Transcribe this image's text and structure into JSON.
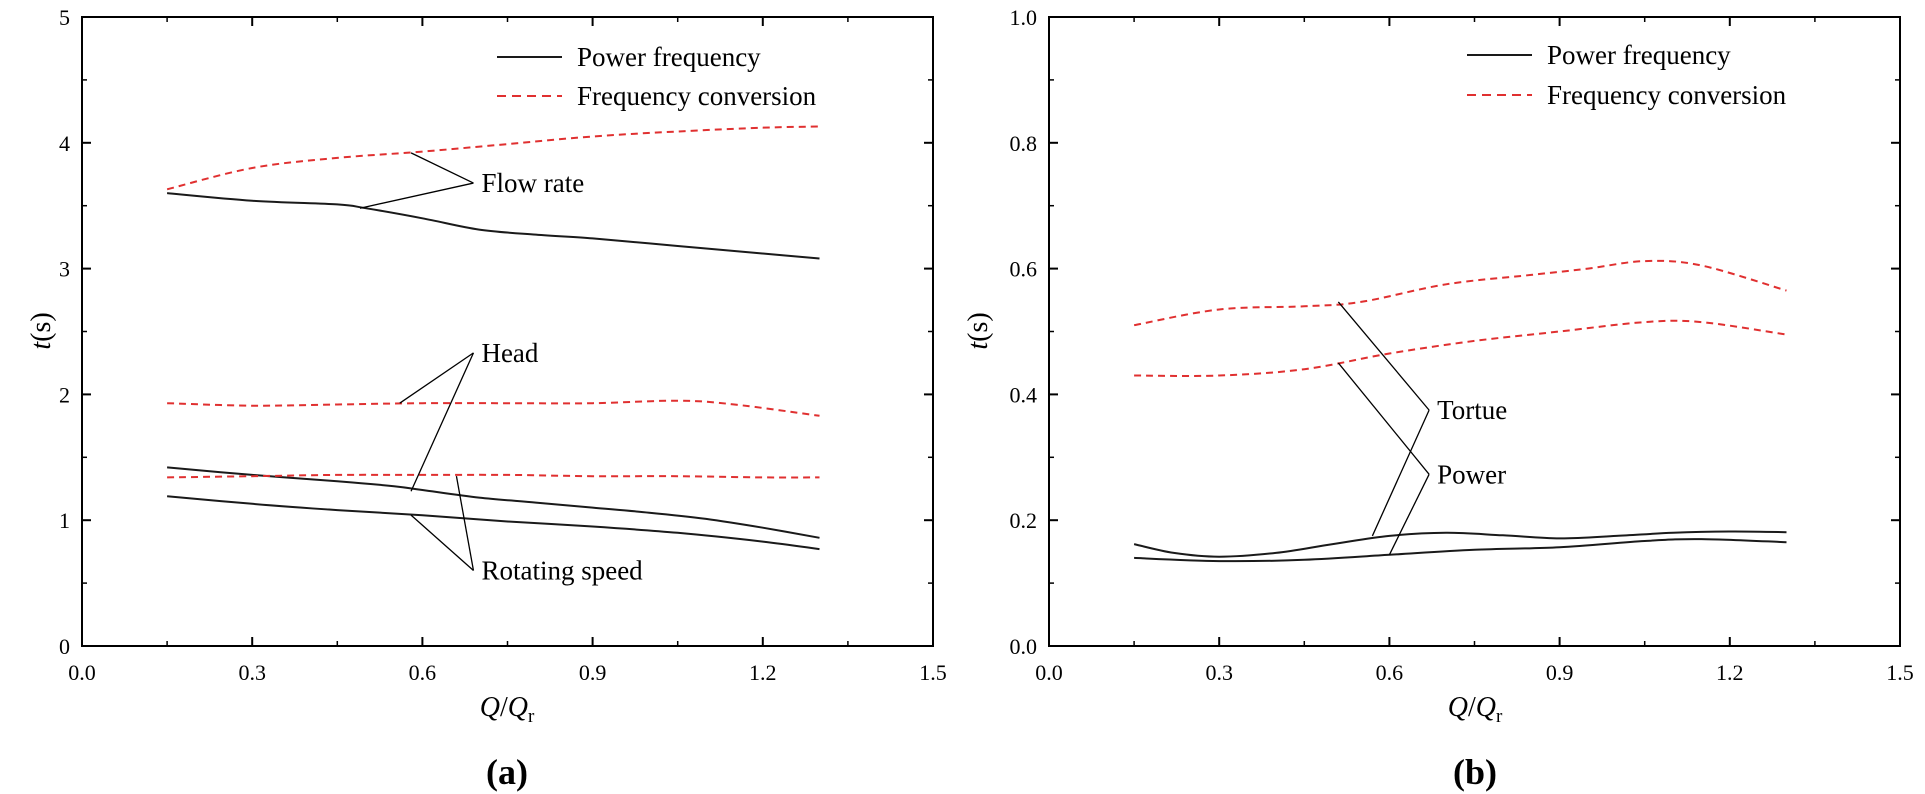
{
  "chart_data": [
    {
      "type": "line",
      "panel_label": "(a)",
      "xlabel": "Q/Qr",
      "ylabel": "t(s)",
      "xlim": [
        0,
        1.5
      ],
      "ylim": [
        0,
        5
      ],
      "xticks": [
        0.0,
        0.3,
        0.6,
        0.9,
        1.2,
        1.5
      ],
      "xtick_labels": [
        "0.0",
        "0.3",
        "0.6",
        "0.9",
        "1.2",
        "1.5"
      ],
      "yticks": [
        0,
        1,
        2,
        3,
        4,
        5
      ],
      "ytick_labels": [
        "0",
        "1",
        "2",
        "3",
        "4",
        "5"
      ],
      "legend": {
        "placement": "top-right",
        "entries": [
          {
            "label": "Power frequency",
            "style": "solid",
            "color": "#1a1a1a"
          },
          {
            "label": "Frequency conversion",
            "style": "dashed",
            "color": "#e03030"
          }
        ]
      },
      "series": [
        {
          "name": "Flow rate - Power frequency",
          "style": "solid",
          "color": "#1a1a1a",
          "x": [
            0.15,
            0.3,
            0.45,
            0.5,
            0.6,
            0.7,
            0.8,
            0.9,
            1.0,
            1.1,
            1.2,
            1.3
          ],
          "y": [
            3.6,
            3.54,
            3.51,
            3.48,
            3.4,
            3.31,
            3.27,
            3.24,
            3.2,
            3.16,
            3.12,
            3.08
          ]
        },
        {
          "name": "Flow rate - Frequency conversion",
          "style": "dashed",
          "color": "#e03030",
          "x": [
            0.15,
            0.3,
            0.45,
            0.6,
            0.75,
            0.9,
            1.05,
            1.2,
            1.3
          ],
          "y": [
            3.63,
            3.8,
            3.88,
            3.93,
            3.99,
            4.05,
            4.09,
            4.12,
            4.13
          ]
        },
        {
          "name": "Head - Power frequency",
          "style": "solid",
          "color": "#1a1a1a",
          "x": [
            0.15,
            0.3,
            0.45,
            0.55,
            0.6,
            0.7,
            0.8,
            0.9,
            1.0,
            1.1,
            1.2,
            1.3
          ],
          "y": [
            1.42,
            1.36,
            1.31,
            1.27,
            1.24,
            1.18,
            1.14,
            1.1,
            1.06,
            1.01,
            0.94,
            0.86
          ]
        },
        {
          "name": "Head - Frequency conversion",
          "style": "dashed",
          "color": "#e03030",
          "x": [
            0.15,
            0.3,
            0.45,
            0.6,
            0.75,
            0.9,
            1.05,
            1.15,
            1.3
          ],
          "y": [
            1.93,
            1.91,
            1.92,
            1.93,
            1.93,
            1.93,
            1.95,
            1.92,
            1.83
          ]
        },
        {
          "name": "Rotating speed - Power frequency",
          "style": "solid",
          "color": "#1a1a1a",
          "x": [
            0.15,
            0.3,
            0.45,
            0.6,
            0.75,
            0.9,
            1.05,
            1.2,
            1.3
          ],
          "y": [
            1.19,
            1.13,
            1.08,
            1.04,
            0.99,
            0.95,
            0.9,
            0.83,
            0.77
          ]
        },
        {
          "name": "Rotating speed - Frequency conversion",
          "style": "dashed",
          "color": "#e03030",
          "x": [
            0.15,
            0.3,
            0.45,
            0.6,
            0.75,
            0.9,
            1.05,
            1.2,
            1.3
          ],
          "y": [
            1.34,
            1.35,
            1.36,
            1.36,
            1.36,
            1.35,
            1.35,
            1.34,
            1.34
          ]
        }
      ],
      "annotations": [
        {
          "text": "Flow rate",
          "x": 0.69,
          "y": 3.68,
          "targets": [
            [
              0.58,
              3.92
            ],
            [
              0.49,
              3.48
            ]
          ]
        },
        {
          "text": "Head",
          "x": 0.69,
          "y": 2.33,
          "targets": [
            [
              0.56,
              1.93
            ],
            [
              0.58,
              1.23
            ]
          ]
        },
        {
          "text": "Rotating speed",
          "x": 0.69,
          "y": 0.6,
          "targets": [
            [
              0.66,
              1.35
            ],
            [
              0.58,
              1.04
            ]
          ]
        }
      ]
    },
    {
      "type": "line",
      "panel_label": "(b)",
      "xlabel": "Q/Qr",
      "ylabel": "t(s)",
      "xlim": [
        0,
        1.5
      ],
      "ylim": [
        0,
        1.0
      ],
      "xticks": [
        0.0,
        0.3,
        0.6,
        0.9,
        1.2,
        1.5
      ],
      "xtick_labels": [
        "0.0",
        "0.3",
        "0.6",
        "0.9",
        "1.2",
        "1.5"
      ],
      "yticks": [
        0.0,
        0.2,
        0.4,
        0.6,
        0.8,
        1.0
      ],
      "ytick_labels": [
        "0.0",
        "0.2",
        "0.4",
        "0.6",
        "0.8",
        "1.0"
      ],
      "legend": {
        "placement": "top-right",
        "entries": [
          {
            "label": "Power frequency",
            "style": "solid",
            "color": "#1a1a1a"
          },
          {
            "label": "Frequency conversion",
            "style": "dashed",
            "color": "#e03030"
          }
        ]
      },
      "series": [
        {
          "name": "Tortue - Frequency conversion",
          "style": "dashed",
          "color": "#e03030",
          "x": [
            0.15,
            0.3,
            0.45,
            0.55,
            0.7,
            0.85,
            0.95,
            1.05,
            1.15,
            1.3
          ],
          "y": [
            0.51,
            0.535,
            0.54,
            0.547,
            0.575,
            0.59,
            0.6,
            0.612,
            0.605,
            0.565
          ]
        },
        {
          "name": "Power - Frequency conversion",
          "style": "dashed",
          "color": "#e03030",
          "x": [
            0.15,
            0.3,
            0.45,
            0.6,
            0.75,
            0.9,
            1.05,
            1.15,
            1.3
          ],
          "y": [
            0.43,
            0.43,
            0.44,
            0.465,
            0.485,
            0.5,
            0.515,
            0.515,
            0.495
          ]
        },
        {
          "name": "Tortue - Power frequency",
          "style": "solid",
          "color": "#1a1a1a",
          "x": [
            0.15,
            0.22,
            0.3,
            0.4,
            0.5,
            0.6,
            0.7,
            0.8,
            0.9,
            1.0,
            1.1,
            1.2,
            1.3
          ],
          "y": [
            0.162,
            0.148,
            0.142,
            0.148,
            0.162,
            0.175,
            0.18,
            0.176,
            0.171,
            0.175,
            0.18,
            0.182,
            0.181
          ]
        },
        {
          "name": "Power - Power frequency",
          "style": "solid",
          "color": "#1a1a1a",
          "x": [
            0.15,
            0.3,
            0.45,
            0.6,
            0.75,
            0.9,
            1.05,
            1.15,
            1.3
          ],
          "y": [
            0.14,
            0.135,
            0.137,
            0.145,
            0.153,
            0.157,
            0.167,
            0.17,
            0.165
          ]
        }
      ],
      "annotations": [
        {
          "text": "Tortue",
          "x": 0.67,
          "y": 0.375,
          "targets": [
            [
              0.51,
              0.547
            ],
            [
              0.57,
              0.175
            ]
          ]
        },
        {
          "text": "Power",
          "x": 0.67,
          "y": 0.273,
          "targets": [
            [
              0.51,
              0.45
            ],
            [
              0.6,
              0.145
            ]
          ]
        }
      ]
    }
  ]
}
